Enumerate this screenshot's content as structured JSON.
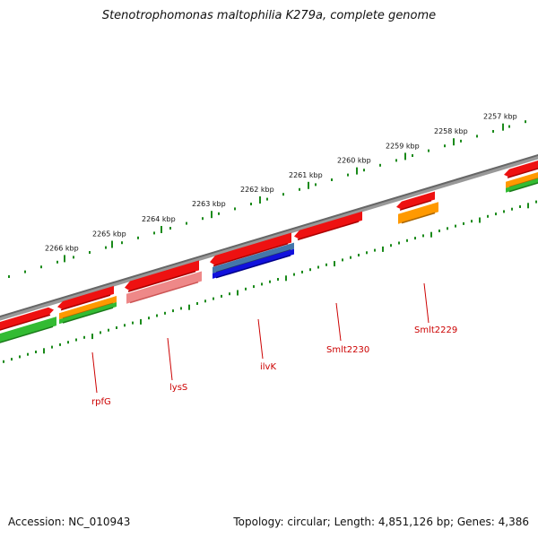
{
  "title": "Stenotrophomonas maltophilia K279a, complete genome",
  "accession": "Accession: NC_010943",
  "summary": "Topology: circular; Length: 4,851,126 bp; Genes: 4,386",
  "colors": {
    "backbone": "#888888",
    "tick": "#1a8a1a",
    "cds": "#ee1111",
    "cds_light": "#ee8888",
    "gene": "#33bb33",
    "orange": "#ff9900",
    "blue": "#1111dd",
    "steel": "#4477aa",
    "label": "#cc0000"
  },
  "scale_labels": [
    {
      "text": "2266 kbp",
      "kbp": 2266
    },
    {
      "text": "2265 kbp",
      "kbp": 2265
    },
    {
      "text": "2264 kbp",
      "kbp": 2264
    },
    {
      "text": "2263 kbp",
      "kbp": 2263
    },
    {
      "text": "2262 kbp",
      "kbp": 2262
    },
    {
      "text": "2261 kbp",
      "kbp": 2261
    },
    {
      "text": "2260 kbp",
      "kbp": 2260
    },
    {
      "text": "2259 kbp",
      "kbp": 2259
    },
    {
      "text": "2258 kbp",
      "kbp": 2258
    },
    {
      "text": "2257 kbp",
      "kbp": 2257
    }
  ],
  "gene_labels": [
    {
      "text": "rpfG"
    },
    {
      "text": "lysS"
    },
    {
      "text": "ilvK"
    },
    {
      "text": "Smlt2230"
    },
    {
      "text": "Smlt2229"
    }
  ]
}
